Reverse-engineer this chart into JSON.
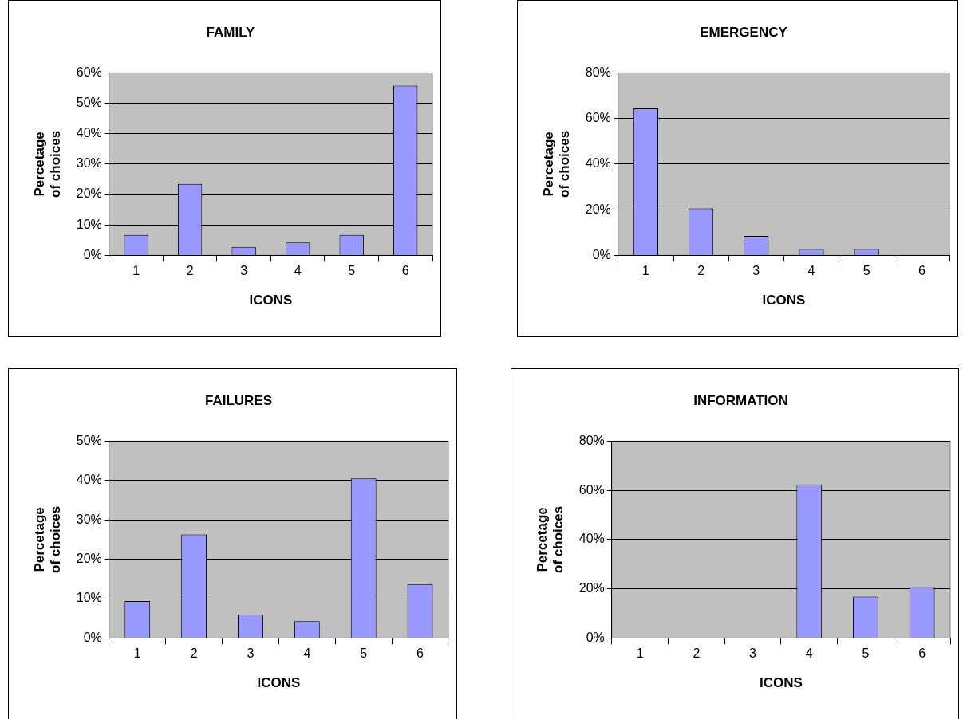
{
  "chart_data": [
    {
      "type": "bar",
      "title": "FAMILY",
      "xlabel": "ICONS",
      "ylabel": "Percetage of choices",
      "categories": [
        "1",
        "2",
        "3",
        "4",
        "5",
        "6"
      ],
      "series": [
        {
          "color": "#9999ff",
          "values": [
            6.7,
            23.5,
            2.8,
            4.2,
            6.7,
            55.8
          ]
        }
      ],
      "ylim": [
        0,
        60
      ],
      "yticks": [
        {
          "value": 0,
          "label": "0%"
        },
        {
          "value": 10,
          "label": "10%"
        },
        {
          "value": 20,
          "label": "20%"
        },
        {
          "value": 30,
          "label": "30%"
        },
        {
          "value": 40,
          "label": "40%"
        },
        {
          "value": 50,
          "label": "50%"
        },
        {
          "value": 60,
          "label": "60%"
        }
      ],
      "grid": "y",
      "legend": false
    },
    {
      "type": "bar",
      "title": "EMERGENCY",
      "xlabel": "ICONS",
      "ylabel": "Percetage of choices",
      "categories": [
        "1",
        "2",
        "3",
        "4",
        "5",
        "6"
      ],
      "series": [
        {
          "color": "#9999ff",
          "values": [
            64.4,
            20.6,
            8.5,
            2.8,
            2.8,
            0
          ]
        }
      ],
      "ylim": [
        0,
        80
      ],
      "yticks": [
        {
          "value": 0,
          "label": "0%"
        },
        {
          "value": 20,
          "label": "20%"
        },
        {
          "value": 40,
          "label": "40%"
        },
        {
          "value": 60,
          "label": "60%"
        },
        {
          "value": 80,
          "label": "80%"
        }
      ],
      "grid": "y",
      "legend": false
    },
    {
      "type": "bar",
      "title": "FAILURES",
      "xlabel": "ICONS",
      "ylabel": "Percetage of choices",
      "categories": [
        "1",
        "2",
        "3",
        "4",
        "5",
        "6"
      ],
      "series": [
        {
          "color": "#9999ff",
          "values": [
            9.4,
            26.3,
            5.9,
            4.3,
            40.5,
            13.7
          ]
        }
      ],
      "ylim": [
        0,
        50
      ],
      "yticks": [
        {
          "value": 0,
          "label": "0%"
        },
        {
          "value": 10,
          "label": "10%"
        },
        {
          "value": 20,
          "label": "20%"
        },
        {
          "value": 30,
          "label": "30%"
        },
        {
          "value": 40,
          "label": "40%"
        },
        {
          "value": 50,
          "label": "50%"
        }
      ],
      "grid": "y",
      "legend": false
    },
    {
      "type": "bar",
      "title": "INFORMATION",
      "xlabel": "ICONS",
      "ylabel": "Percetage of choices",
      "categories": [
        "1",
        "2",
        "3",
        "4",
        "5",
        "6"
      ],
      "series": [
        {
          "color": "#9999ff",
          "values": [
            0,
            0,
            0,
            62.4,
            16.8,
            20.8
          ]
        }
      ],
      "ylim": [
        0,
        80
      ],
      "yticks": [
        {
          "value": 0,
          "label": "0%"
        },
        {
          "value": 20,
          "label": "20%"
        },
        {
          "value": 40,
          "label": "40%"
        },
        {
          "value": 60,
          "label": "60%"
        },
        {
          "value": 80,
          "label": "80%"
        }
      ],
      "grid": "y",
      "legend": false
    }
  ]
}
